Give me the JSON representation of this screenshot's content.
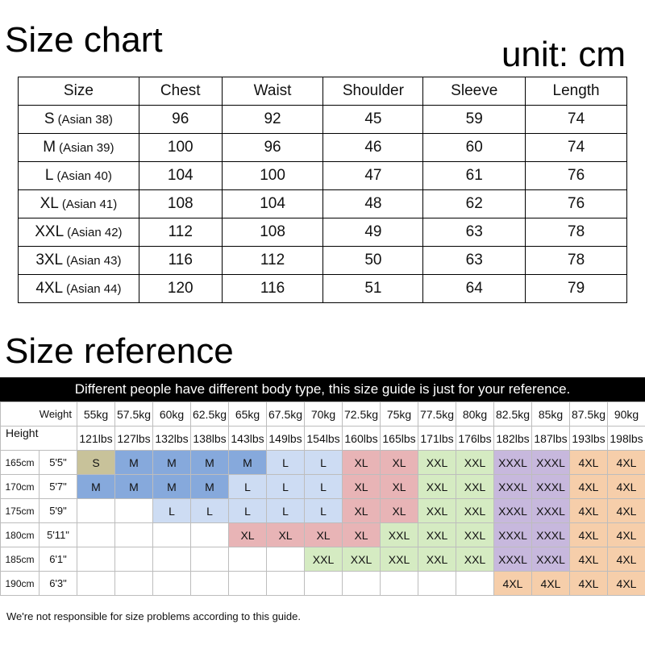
{
  "size_chart": {
    "title": "Size chart",
    "unit": "unit: cm",
    "headers": [
      "Size",
      "Chest",
      "Waist",
      "Shoulder",
      "Sleeve",
      "Length"
    ],
    "rows": [
      {
        "size": "S",
        "asian": "(Asian 38)",
        "chest": "96",
        "waist": "92",
        "shoulder": "45",
        "sleeve": "59",
        "length": "74"
      },
      {
        "size": "M",
        "asian": "(Asian 39)",
        "chest": "100",
        "waist": "96",
        "shoulder": "46",
        "sleeve": "60",
        "length": "74"
      },
      {
        "size": "L",
        "asian": "(Asian 40)",
        "chest": "104",
        "waist": "100",
        "shoulder": "47",
        "sleeve": "61",
        "length": "76"
      },
      {
        "size": "XL",
        "asian": "(Asian 41)",
        "chest": "108",
        "waist": "104",
        "shoulder": "48",
        "sleeve": "62",
        "length": "76"
      },
      {
        "size": "XXL",
        "asian": "(Asian 42)",
        "chest": "112",
        "waist": "108",
        "shoulder": "49",
        "sleeve": "63",
        "length": "78"
      },
      {
        "size": "3XL",
        "asian": "(Asian 43)",
        "chest": "116",
        "waist": "112",
        "shoulder": "50",
        "sleeve": "63",
        "length": "78"
      },
      {
        "size": "4XL",
        "asian": "(Asian 44)",
        "chest": "120",
        "waist": "116",
        "shoulder": "51",
        "sleeve": "64",
        "length": "79"
      }
    ]
  },
  "size_reference": {
    "title": "Size reference",
    "banner": "Different people have different body type, this size guide is just for your reference.",
    "weight_label": "Weight",
    "height_label": "Height",
    "weights_kg": [
      "55kg",
      "57.5kg",
      "60kg",
      "62.5kg",
      "65kg",
      "67.5kg",
      "70kg",
      "72.5kg",
      "75kg",
      "77.5kg",
      "80kg",
      "82.5kg",
      "85kg",
      "87.5kg",
      "90kg"
    ],
    "weights_lbs": [
      "121lbs",
      "127lbs",
      "132lbs",
      "138lbs",
      "143lbs",
      "149lbs",
      "154lbs",
      "160lbs",
      "165lbs",
      "171lbs",
      "176lbs",
      "182lbs",
      "187lbs",
      "193lbs",
      "198lbs"
    ],
    "rows": [
      {
        "cm": "165cm",
        "ft": "5'5\"",
        "cells": [
          "S",
          "M",
          "M",
          "M",
          "M",
          "L",
          "L",
          "XL",
          "XL",
          "XXL",
          "XXL",
          "XXXL",
          "XXXL",
          "4XL",
          "4XL"
        ]
      },
      {
        "cm": "170cm",
        "ft": "5'7\"",
        "cells": [
          "M",
          "M",
          "M",
          "M",
          "L",
          "L",
          "L",
          "XL",
          "XL",
          "XXL",
          "XXL",
          "XXXL",
          "XXXL",
          "4XL",
          "4XL"
        ]
      },
      {
        "cm": "175cm",
        "ft": "5'9\"",
        "cells": [
          "",
          "",
          "L",
          "L",
          "L",
          "L",
          "L",
          "XL",
          "XL",
          "XXL",
          "XXL",
          "XXXL",
          "XXXL",
          "4XL",
          "4XL"
        ]
      },
      {
        "cm": "180cm",
        "ft": "5'11\"",
        "cells": [
          "",
          "",
          "",
          "",
          "XL",
          "XL",
          "XL",
          "XL",
          "XXL",
          "XXL",
          "XXL",
          "XXXL",
          "XXXL",
          "4XL",
          "4XL"
        ]
      },
      {
        "cm": "185cm",
        "ft": "6'1\"",
        "cells": [
          "",
          "",
          "",
          "",
          "",
          "",
          "XXL",
          "XXL",
          "XXL",
          "XXL",
          "XXL",
          "XXXL",
          "XXXL",
          "4XL",
          "4XL"
        ]
      },
      {
        "cm": "190cm",
        "ft": "6'3\"",
        "cells": [
          "",
          "",
          "",
          "",
          "",
          "",
          "",
          "",
          "",
          "",
          "",
          "4XL",
          "4XL",
          "4XL",
          "4XL"
        ]
      }
    ],
    "disclaimer": "We're not responsible for size problems according to this guide."
  }
}
